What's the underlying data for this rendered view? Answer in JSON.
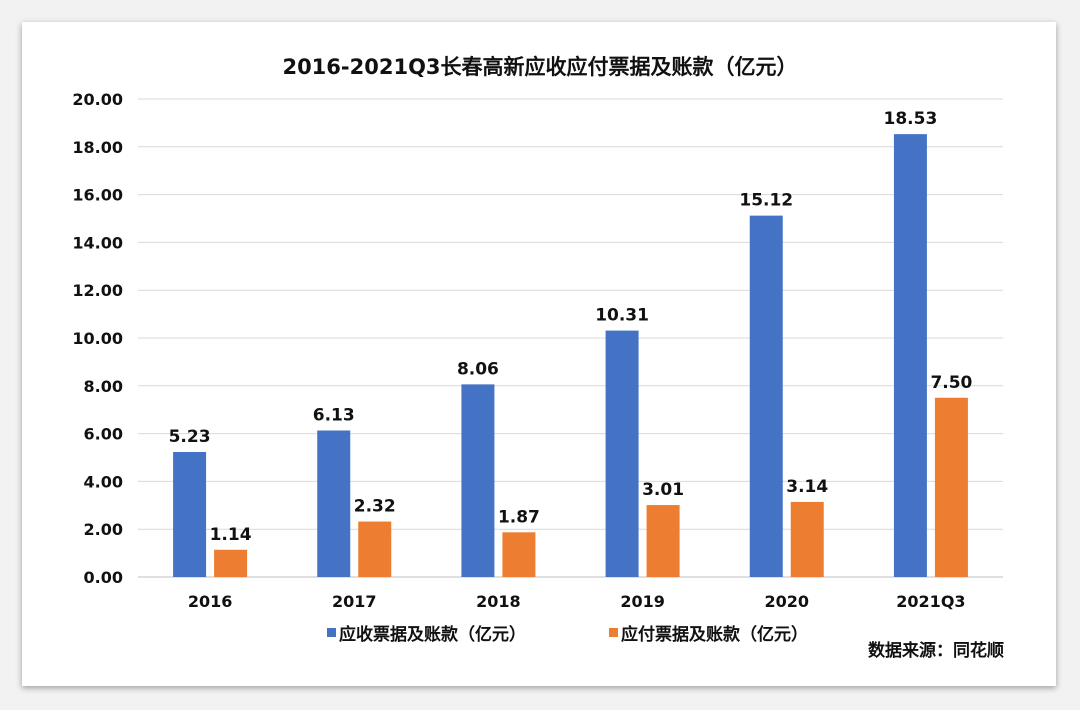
{
  "chart_data": {
    "type": "bar",
    "title": "2016-2021Q3长春高新应收应付票据及账款（亿元）",
    "categories": [
      "2016",
      "2017",
      "2018",
      "2019",
      "2020",
      "2021Q3"
    ],
    "series": [
      {
        "name": "应收票据及账款（亿元）",
        "color": "#4472c4",
        "values": [
          5.23,
          6.13,
          8.06,
          10.31,
          15.12,
          18.53
        ]
      },
      {
        "name": "应付票据及账款（亿元）",
        "color": "#ed7d31",
        "values": [
          1.14,
          2.32,
          1.87,
          3.01,
          3.14,
          7.5
        ]
      }
    ],
    "ylim": [
      0,
      20
    ],
    "yticks": [
      0,
      2,
      4,
      6,
      8,
      10,
      12,
      14,
      16,
      18,
      20
    ],
    "grid": true,
    "legend": "bottom",
    "xlabel": "",
    "ylabel": "",
    "source": "数据来源：同花顺"
  }
}
